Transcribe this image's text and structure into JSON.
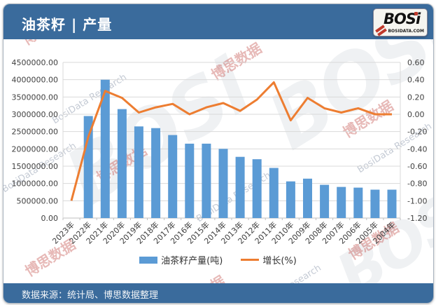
{
  "header": {
    "title": "油茶籽 | 产量"
  },
  "logo": {
    "brand": "BOSi",
    "domain": "BOSIDATA.COM"
  },
  "footer": {
    "source_text": "数据来源：统计局、博思数据整理"
  },
  "legend": [
    {
      "label": "油茶籽产量(吨)",
      "type": "bar",
      "color": "#5B9BD5"
    },
    {
      "label": "增长(%)",
      "type": "line",
      "color": "#ED7D31"
    }
  ],
  "watermark": {
    "cn": "博思数据",
    "en": "BosiData Research",
    "brand": "BOSi"
  },
  "colors": {
    "header_bg": "#3a6b9c",
    "bar": "#5B9BD5",
    "line": "#ED7D31",
    "gridline": "#d9d9d9",
    "axis_text": "#3f3f3f"
  },
  "chart_data": {
    "type": "bar",
    "subtype": "bar+line dual axis",
    "title": "油茶籽 | 产量",
    "categories": [
      "2023年",
      "2022年",
      "2021年",
      "2020年",
      "2019年",
      "2018年",
      "2017年",
      "2016年",
      "2015年",
      "2014年",
      "2013年",
      "2012年",
      "2011年",
      "2010年",
      "2009年",
      "2008年",
      "2007年",
      "2006年",
      "2005年",
      "2004年"
    ],
    "series": [
      {
        "name": "油茶籽产量(吨)",
        "type": "bar",
        "axis": "left",
        "color": "#5B9BD5",
        "values": [
          0,
          2950000,
          4000000,
          3150000,
          2650000,
          2600000,
          2400000,
          2150000,
          2150000,
          2000000,
          1770000,
          1700000,
          1450000,
          1060000,
          1140000,
          960000,
          900000,
          880000,
          820000,
          820000
        ]
      },
      {
        "name": "增长(%)",
        "type": "line",
        "axis": "right",
        "color": "#ED7D31",
        "values": [
          -1.0,
          -0.26,
          0.27,
          0.19,
          0.02,
          0.08,
          0.12,
          0.0,
          0.08,
          0.13,
          0.04,
          0.17,
          0.37,
          -0.07,
          0.19,
          0.07,
          0.02,
          0.07,
          0.0,
          0.0
        ]
      }
    ],
    "left_axis": {
      "min": 0,
      "max": 4500000,
      "step": 500000,
      "tick_labels": [
        "4500000.00",
        "4000000.00",
        "3500000.00",
        "3000000.00",
        "2500000.00",
        "2000000.00",
        "1500000.00",
        "1000000.00",
        "500000.00",
        "0.00"
      ]
    },
    "right_axis": {
      "min": -1.2,
      "max": 0.6,
      "step": 0.2,
      "tick_labels": [
        "0.60",
        "0.40",
        "0.20",
        "0.00",
        "-0.20",
        "-0.40",
        "-0.60",
        "-0.80",
        "-1.00",
        "-1.20"
      ]
    },
    "grid": true,
    "legend_position": "bottom",
    "x_label_rotation": -45
  }
}
